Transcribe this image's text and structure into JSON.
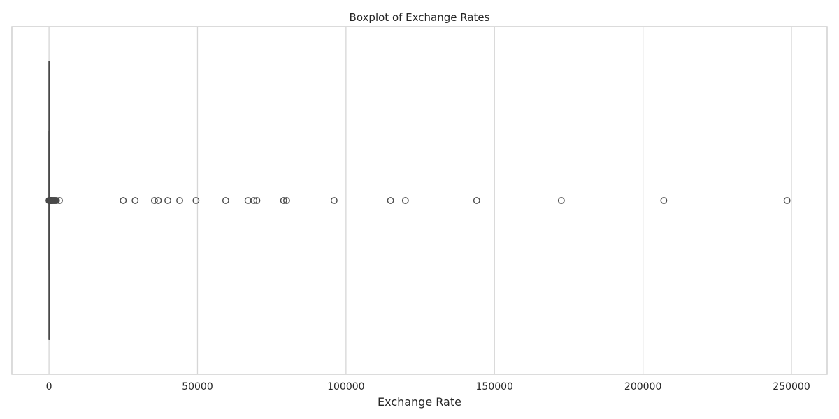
{
  "chart_data": {
    "type": "boxplot",
    "orientation": "horizontal",
    "title": "Boxplot of Exchange Rates",
    "xlabel": "Exchange Rate",
    "ylabel": "",
    "xlim": [
      -12500,
      262000
    ],
    "xticks": [
      0,
      50000,
      100000,
      150000,
      200000,
      250000
    ],
    "xtick_labels": [
      "0",
      "50000",
      "100000",
      "150000",
      "200000",
      "250000"
    ],
    "grid": true,
    "grid_axis": "x",
    "box": {
      "q1": 0.5,
      "median": 1,
      "q3": 2,
      "whisker_low": 0,
      "whisker_high": 5
    },
    "outliers": [
      10,
      20,
      35,
      50,
      80,
      100,
      150,
      200,
      300,
      400,
      500,
      600,
      700,
      800,
      900,
      1000,
      1200,
      1400,
      1600,
      1800,
      2000,
      2200,
      2500,
      3500,
      25000,
      29000,
      35500,
      36800,
      40000,
      44000,
      49500,
      59500,
      67000,
      69000,
      70000,
      79000,
      80000,
      96000,
      115000,
      120000,
      144000,
      172500,
      207000,
      248500
    ],
    "colors": {
      "box": "#4c72b0",
      "line": "#4a4a4a",
      "grid": "#d6d6d6",
      "frame": "#cccccc",
      "text": "#262626"
    }
  }
}
